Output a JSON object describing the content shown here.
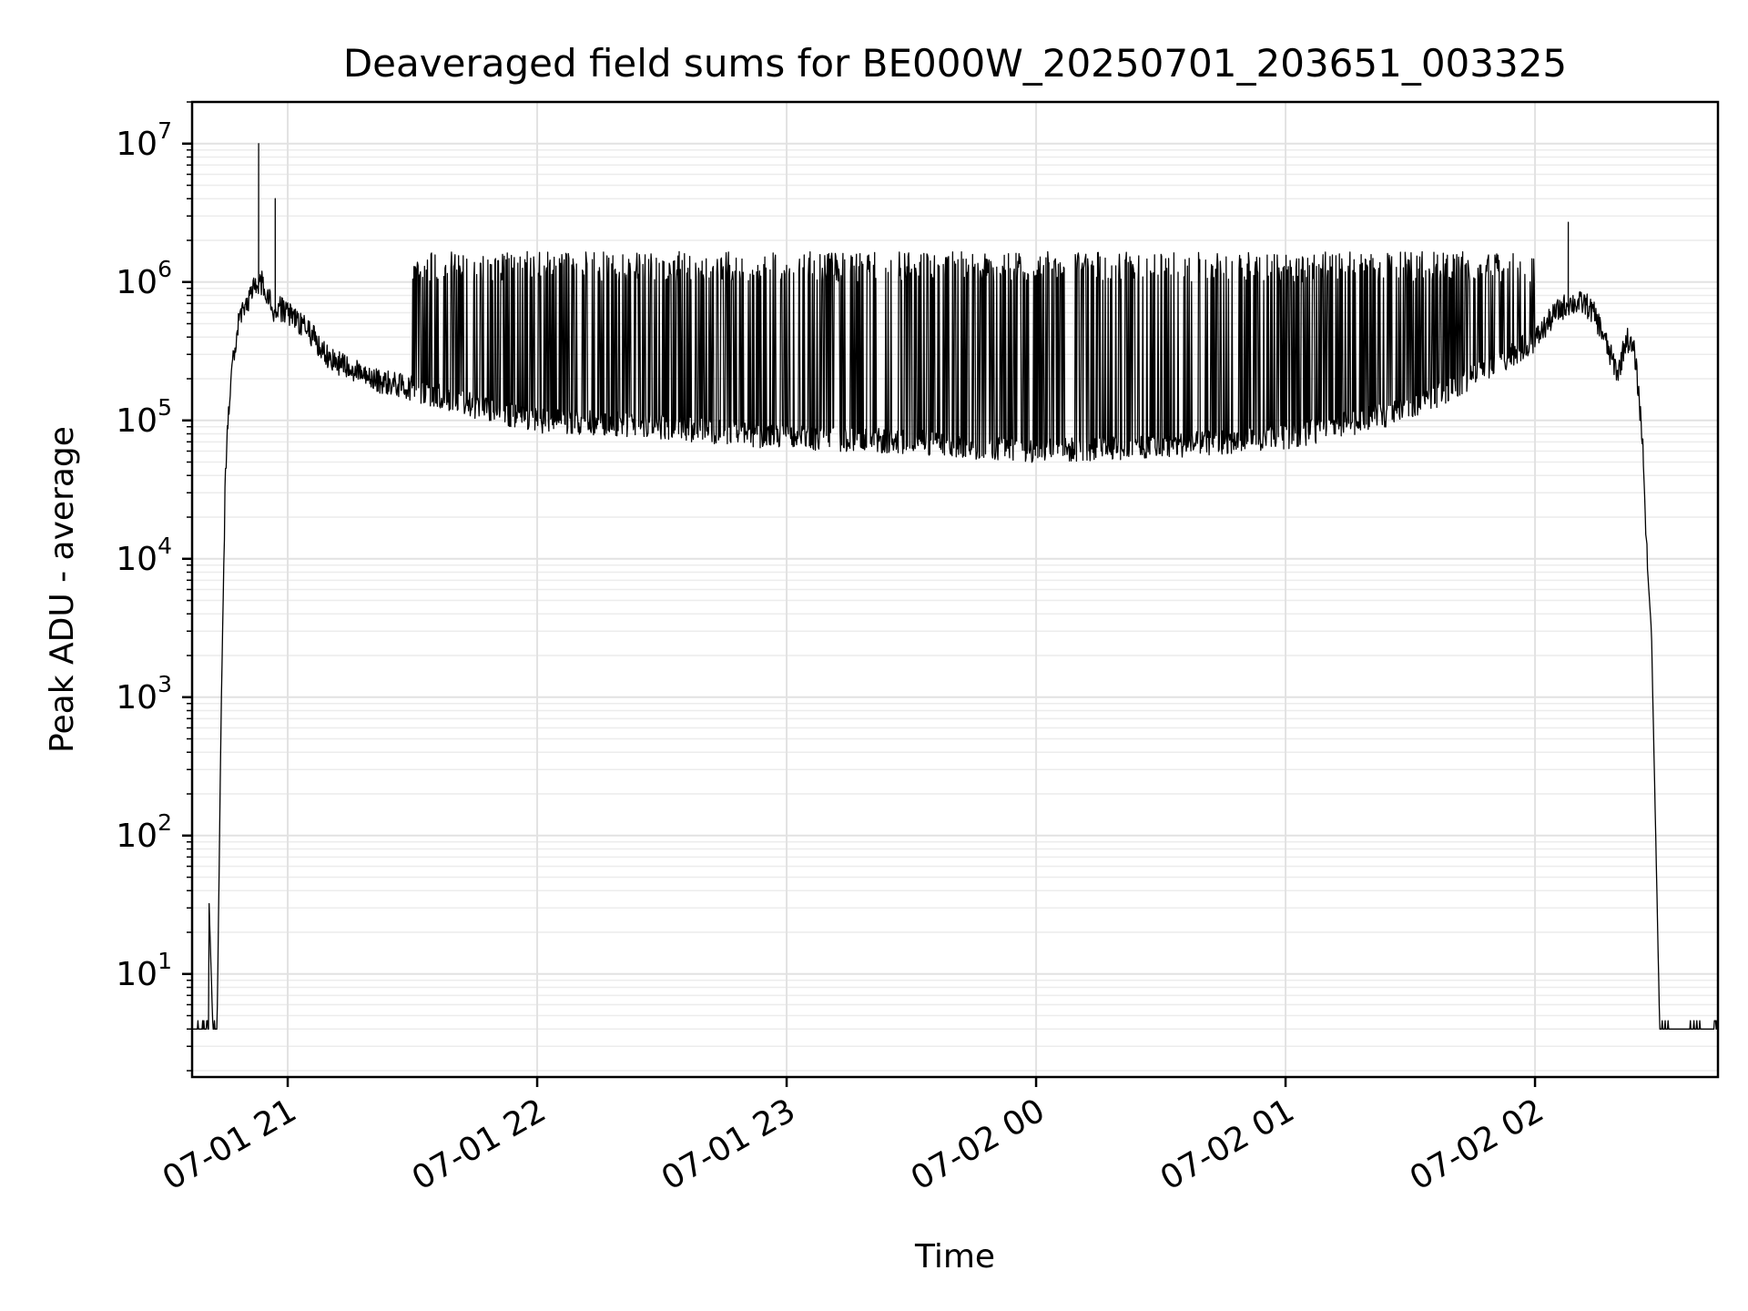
{
  "chart_data": {
    "type": "line",
    "title": "Deaveraged field sums for BE000W_20250701_203651_003325",
    "xlabel": "Time",
    "ylabel": "Peak ADU - average",
    "xscale": "time",
    "yscale": "log",
    "xlim": [
      "2025-07-01 20:37",
      "2025-07-02 02:44"
    ],
    "ylim": [
      1.8,
      20000000
    ],
    "x_ticks": [
      {
        "t": "2025-07-01 21:00",
        "label": "07-01 21"
      },
      {
        "t": "2025-07-01 22:00",
        "label": "07-01 22"
      },
      {
        "t": "2025-07-01 23:00",
        "label": "07-01 23"
      },
      {
        "t": "2025-07-02 00:00",
        "label": "07-02 00"
      },
      {
        "t": "2025-07-02 01:00",
        "label": "07-02 01"
      },
      {
        "t": "2025-07-02 02:00",
        "label": "07-02 02"
      }
    ],
    "y_ticks": [
      {
        "value": 10,
        "base": "10",
        "exp": "1"
      },
      {
        "value": 100,
        "base": "10",
        "exp": "2"
      },
      {
        "value": 1000,
        "base": "10",
        "exp": "3"
      },
      {
        "value": 10000,
        "base": "10",
        "exp": "4"
      },
      {
        "value": 100000,
        "base": "10",
        "exp": "5"
      },
      {
        "value": 1000000,
        "base": "10",
        "exp": "6"
      },
      {
        "value": 10000000,
        "base": "10",
        "exp": "7"
      }
    ],
    "grid": true,
    "line_color": "#000000",
    "grid_color": "#e2e2e2",
    "series": [
      {
        "x": [
          "2025-07-01 20:37",
          "2025-07-01 20:38",
          "2025-07-01 20:39",
          "2025-07-01 20:40",
          "2025-07-01 20:41",
          "2025-07-01 20:41",
          "2025-07-01 20:42",
          "2025-07-01 20:42",
          "2025-07-01 20:43",
          "2025-07-01 20:44",
          "2025-07-01 20:45",
          "2025-07-01 20:46",
          "2025-07-01 20:47",
          "2025-07-01 20:48",
          "2025-07-01 20:50",
          "2025-07-01 20:52",
          "2025-07-01 20:54",
          "2025-07-01 20:56",
          "2025-07-01 20:57",
          "2025-07-01 20:58",
          "2025-07-01 20:59",
          "2025-07-01 21:00",
          "2025-07-01 21:05",
          "2025-07-01 21:10",
          "2025-07-01 21:20",
          "2025-07-01 21:30",
          "2025-07-01 21:40",
          "2025-07-01 21:50",
          "2025-07-01 22:00",
          "2025-07-01 22:30",
          "2025-07-01 23:00",
          "2025-07-01 23:30",
          "2025-07-02 00:00",
          "2025-07-02 00:30",
          "2025-07-02 01:00",
          "2025-07-02 01:30",
          "2025-07-02 01:50",
          "2025-07-02 02:00",
          "2025-07-02 02:05",
          "2025-07-02 02:08",
          "2025-07-02 02:12",
          "2025-07-02 02:14",
          "2025-07-02 02:16",
          "2025-07-02 02:18",
          "2025-07-02 02:20",
          "2025-07-02 02:22",
          "2025-07-02 02:24",
          "2025-07-02 02:25",
          "2025-07-02 02:26",
          "2025-07-02 02:27",
          "2025-07-02 02:28",
          "2025-07-02 02:30",
          "2025-07-02 02:35",
          "2025-07-02 02:40",
          "2025-07-02 02:44"
        ],
        "y": [
          4,
          4,
          4,
          4,
          4,
          40,
          4,
          4,
          4,
          800,
          40000,
          150000,
          300000,
          500000,
          700000,
          900000,
          1000000,
          700000,
          600000,
          650000,
          620000,
          600000,
          450000,
          280000,
          200000,
          170000,
          140000,
          115000,
          100000,
          90000,
          75000,
          70000,
          60000,
          65000,
          75000,
          120000,
          250000,
          380000,
          600000,
          700000,
          700000,
          600000,
          450000,
          300000,
          220000,
          400000,
          300000,
          150000,
          60000,
          9000,
          3000,
          4,
          4,
          4,
          4
        ]
      }
    ],
    "annotations_spikes": [
      {
        "t": "2025-07-01 20:53",
        "value": 10000000
      },
      {
        "t": "2025-07-01 20:57",
        "value": 4000000
      },
      {
        "t": "2025-07-02 02:08",
        "value": 2700000
      }
    ]
  }
}
